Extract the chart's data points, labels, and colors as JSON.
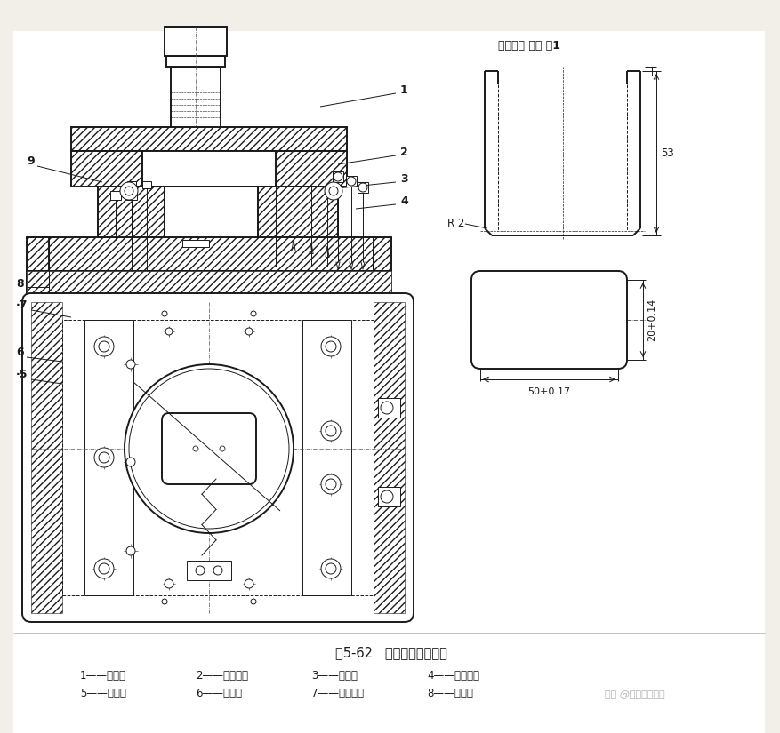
{
  "bg_color": "#f2efe8",
  "paper_color": "#ffffff",
  "line_color": "#1a1a1a",
  "title": "图5-62   移动式凹模拉伸模",
  "row1": [
    "1——凸模；",
    "2——定位板；",
    "3——托板；",
    "4——固定板；"
  ],
  "row2": [
    "5——接套；",
    "6——手把；",
    "7——刮料板；",
    "8——导板；"
  ],
  "top_label": "制件材料 黄铜 厚1",
  "dim_53": "53",
  "dim_r2": "R 2",
  "dim_20": "20+0.14",
  "dim_50": "50+0.17",
  "watermark": "知乎 @冲压模具设计"
}
